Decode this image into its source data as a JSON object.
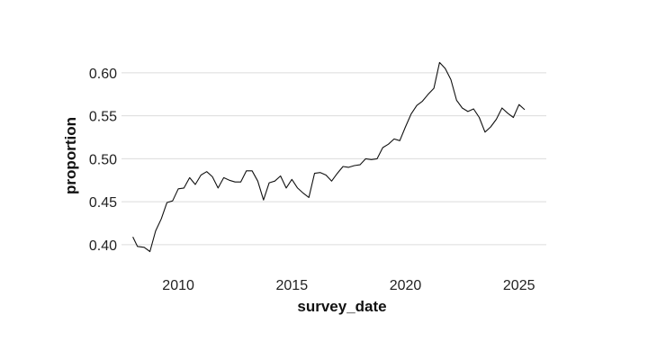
{
  "chart_data": {
    "type": "line",
    "title": "",
    "xlabel": "survey_date",
    "ylabel": "proportion",
    "xlim": [
      2007.5,
      2026.2
    ],
    "ylim": [
      0.38,
      0.625
    ],
    "x_ticks": [
      2010,
      2015,
      2020,
      2025
    ],
    "y_ticks": [
      0.4,
      0.45,
      0.5,
      0.55,
      0.6
    ],
    "x_tick_labels": [
      "2010",
      "2015",
      "2020",
      "2025"
    ],
    "y_tick_labels": [
      "0.40",
      "0.45",
      "0.50",
      "0.55",
      "0.60"
    ],
    "grid": "horizontal",
    "colors": {
      "line": "#111111",
      "grid": "#dcdcdc"
    },
    "series": [
      {
        "x": [
          2008.0,
          2008.2,
          2008.5,
          2008.75,
          2009.0,
          2009.25,
          2009.5,
          2009.75,
          2010.0,
          2010.25,
          2010.5,
          2010.75,
          2011.0,
          2011.25,
          2011.5,
          2011.75,
          2012.0,
          2012.25,
          2012.5,
          2012.75,
          2013.0,
          2013.25,
          2013.5,
          2013.75,
          2014.0,
          2014.25,
          2014.5,
          2014.75,
          2015.0,
          2015.25,
          2015.5,
          2015.75,
          2016.0,
          2016.25,
          2016.5,
          2016.75,
          2017.0,
          2017.25,
          2017.5,
          2017.75,
          2018.0,
          2018.25,
          2018.5,
          2018.75,
          2019.0,
          2019.25,
          2019.5,
          2019.75,
          2020.0,
          2020.25,
          2020.5,
          2020.75,
          2021.0,
          2021.25,
          2021.5,
          2021.75,
          2022.0,
          2022.25,
          2022.5,
          2022.75,
          2023.0,
          2023.25,
          2023.5,
          2023.75,
          2024.0,
          2024.25,
          2024.5,
          2024.75,
          2025.0,
          2025.25
        ],
        "y": [
          0.409,
          0.398,
          0.397,
          0.392,
          0.416,
          0.43,
          0.449,
          0.451,
          0.465,
          0.466,
          0.478,
          0.47,
          0.481,
          0.485,
          0.479,
          0.466,
          0.478,
          0.475,
          0.473,
          0.473,
          0.486,
          0.486,
          0.474,
          0.452,
          0.472,
          0.474,
          0.48,
          0.466,
          0.476,
          0.466,
          0.46,
          0.455,
          0.483,
          0.484,
          0.481,
          0.474,
          0.483,
          0.491,
          0.49,
          0.492,
          0.493,
          0.5,
          0.499,
          0.5,
          0.513,
          0.517,
          0.523,
          0.521,
          0.537,
          0.552,
          0.562,
          0.567,
          0.575,
          0.582,
          0.612,
          0.605,
          0.592,
          0.568,
          0.559,
          0.555,
          0.558,
          0.548,
          0.531,
          0.537,
          0.546,
          0.559,
          0.553,
          0.548,
          0.563,
          0.557
        ]
      }
    ]
  }
}
